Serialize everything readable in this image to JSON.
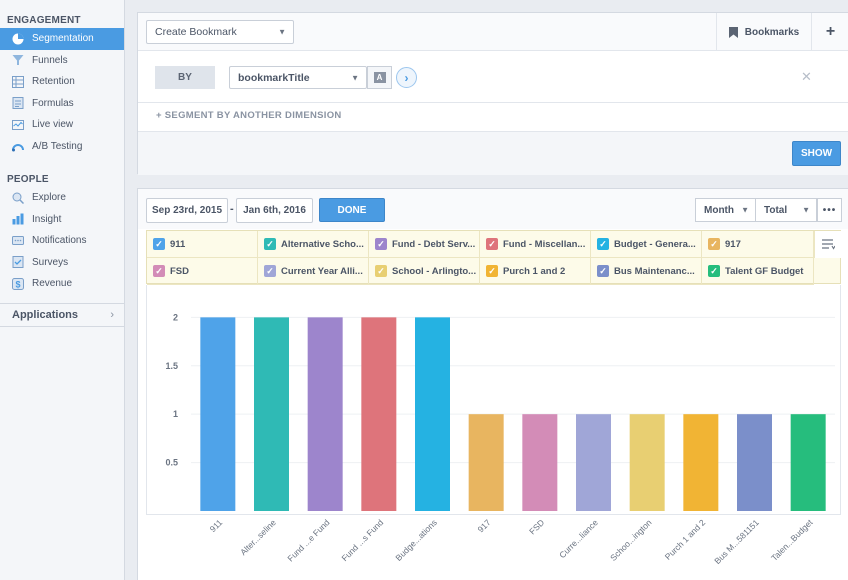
{
  "sidebar": {
    "engagement_title": "ENGAGEMENT",
    "engagement_items": [
      {
        "label": "Segmentation",
        "icon": "pie-chart-icon",
        "active": true
      },
      {
        "label": "Funnels",
        "icon": "funnel-icon"
      },
      {
        "label": "Retention",
        "icon": "retention-grid-icon"
      },
      {
        "label": "Formulas",
        "icon": "formula-icon"
      },
      {
        "label": "Live view",
        "icon": "live-view-icon"
      },
      {
        "label": "A/B Testing",
        "icon": "ab-testing-icon"
      }
    ],
    "people_title": "PEOPLE",
    "people_items": [
      {
        "label": "Explore",
        "icon": "explore-icon"
      },
      {
        "label": "Insight",
        "icon": "insight-icon"
      },
      {
        "label": "Notifications",
        "icon": "notifications-icon"
      },
      {
        "label": "Surveys",
        "icon": "surveys-icon"
      },
      {
        "label": "Revenue",
        "icon": "revenue-icon"
      }
    ],
    "applications_label": "Applications"
  },
  "segmentation": {
    "bookmark_select": "Create Bookmark",
    "bookmarks_label": "Bookmarks",
    "by_label": "BY",
    "property_select": "bookmarkTitle",
    "add_dimension": "SEGMENT BY ANOTHER DIMENSION",
    "show_label": "SHOW"
  },
  "report": {
    "date_from": "Sep 23rd, 2015",
    "date_to": "Jan 6th, 2016",
    "date_separator": "-",
    "done_label": "DONE",
    "interval_select": "Month",
    "measure_select": "Total"
  },
  "legend": [
    {
      "label": "911",
      "color": "#4fa3e9"
    },
    {
      "label": "Alternative Scho...",
      "color": "#2fbab5"
    },
    {
      "label": "Fund - Debt Serv...",
      "color": "#9d85cc"
    },
    {
      "label": "Fund - Miscellan...",
      "color": "#de747b"
    },
    {
      "label": "Budget - Genera...",
      "color": "#25b2e2"
    },
    {
      "label": "917",
      "color": "#e8b560"
    },
    {
      "label": "FSD",
      "color": "#d38cb7"
    },
    {
      "label": "Current Year Alli...",
      "color": "#a0a6d7"
    },
    {
      "label": "School - Arlingto...",
      "color": "#e8cf72"
    },
    {
      "label": "Purch 1 and 2",
      "color": "#f1b434"
    },
    {
      "label": "Bus Maintenanc...",
      "color": "#7b8fca"
    },
    {
      "label": "Talent GF Budget",
      "color": "#26bd7d"
    }
  ],
  "chart_data": {
    "type": "bar",
    "categories": [
      "911",
      "Alter...seline",
      "Fund ...e Fund",
      "Fund ...s Fund",
      "Budge...ations",
      "917",
      "FSD",
      "Curre...liance",
      "Schoo...ington",
      "Purch 1 and 2",
      "Bus M...581151",
      "Talen...Budget"
    ],
    "values": [
      2,
      2,
      2,
      2,
      2,
      1,
      1,
      1,
      1,
      1,
      1,
      1
    ],
    "colors": [
      "#4fa3e9",
      "#2fbab5",
      "#9d85cc",
      "#de747b",
      "#25b2e2",
      "#e8b560",
      "#d38cb7",
      "#a0a6d7",
      "#e8cf72",
      "#f1b434",
      "#7b8fca",
      "#26bd7d"
    ],
    "yticks": [
      "0.5",
      "1",
      "1.5",
      "2"
    ],
    "ylim": [
      0,
      2.2
    ],
    "grid": true
  }
}
